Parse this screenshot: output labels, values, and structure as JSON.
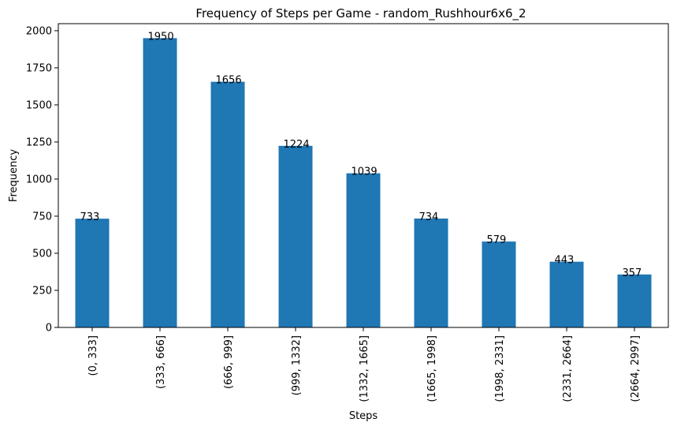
{
  "chart_data": {
    "type": "bar",
    "title": "Frequency of Steps per Game - random_Rushhour6x6_2",
    "xlabel": "Steps",
    "ylabel": "Frequency",
    "categories": [
      "(0, 333]",
      "(333, 666]",
      "(666, 999]",
      "(999, 1332]",
      "(1332, 1665]",
      "(1665, 1998]",
      "(1998, 2331]",
      "(2331, 2664]",
      "(2664, 2997]"
    ],
    "values": [
      733,
      1950,
      1656,
      1224,
      1039,
      734,
      579,
      443,
      357
    ],
    "ylim": [
      0,
      2047.5
    ],
    "yticks": [
      0,
      250,
      500,
      750,
      1000,
      1250,
      1500,
      1750,
      2000
    ],
    "grid": false,
    "bar_color": "#1f77b4",
    "data_labels": true
  }
}
